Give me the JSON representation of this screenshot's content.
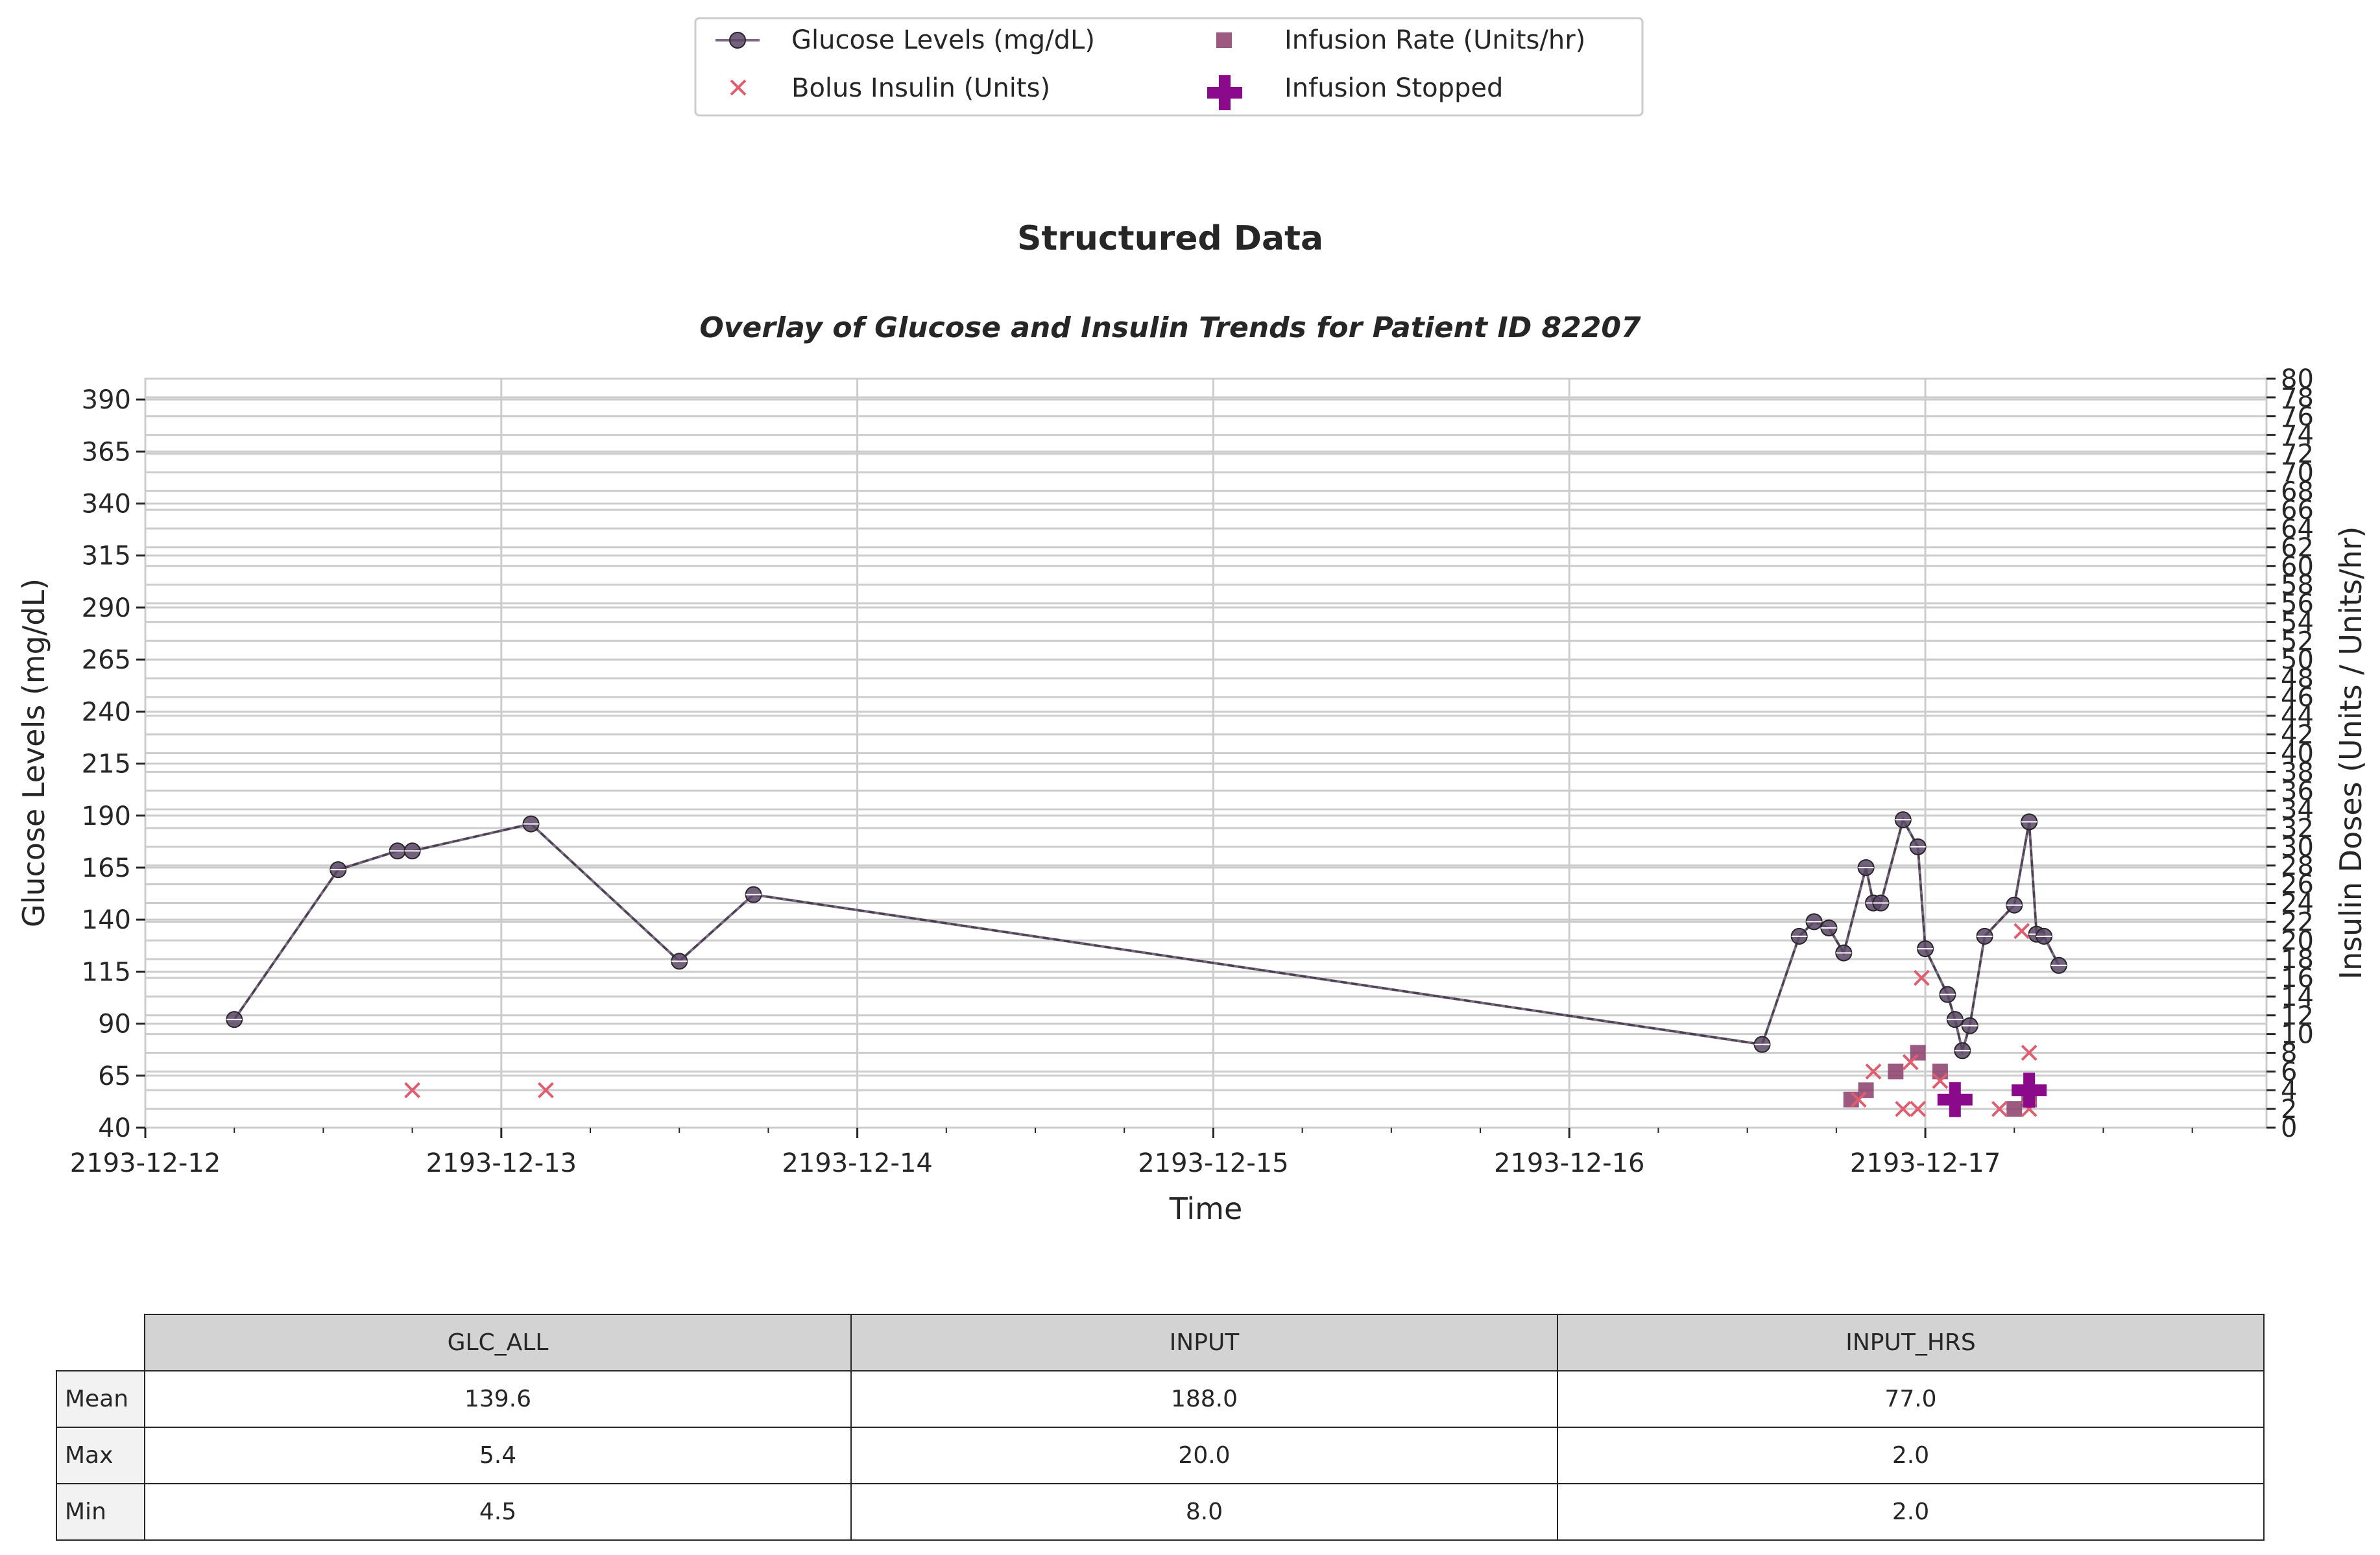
{
  "figure": {
    "suptitle": "Structured Data",
    "subtitle": "Overlay of Glucose and Insulin Trends for Patient ID 82207"
  },
  "legend": {
    "placement": "top-center",
    "items": [
      {
        "label": "Glucose Levels (mg/dL)",
        "marker": "line-circle",
        "color": "#5b4566"
      },
      {
        "label": "Infusion Rate (Units/hr)",
        "marker": "square",
        "color": "#8b3d6b"
      },
      {
        "label": "Bolus Insulin (Units)",
        "marker": "x",
        "color": "#e05c6e"
      },
      {
        "label": "Infusion Stopped",
        "marker": "plus",
        "color": "#8b0a8b"
      }
    ]
  },
  "chart_data": {
    "type": "line",
    "xlabel": "Time",
    "ylabel": "Glucose Levels (mg/dL)",
    "y2label": "Insulin Doses (Units / Units/hr)",
    "x_ticks": [
      "2193-12-12",
      "2193-12-13",
      "2193-12-14",
      "2193-12-15",
      "2193-12-16",
      "2193-12-17"
    ],
    "xlim": [
      "2193-12-12 00:00",
      "2193-12-17 23:00"
    ],
    "ylim": [
      40,
      400
    ],
    "y_ticks": [
      40,
      65,
      90,
      115,
      140,
      165,
      190,
      215,
      240,
      265,
      290,
      315,
      340,
      365,
      390
    ],
    "y2lim": [
      0,
      80
    ],
    "grid": true,
    "colors": {
      "glucose": "#5b4566",
      "infusion": "#8b3d6b",
      "bolus": "#e05c6e",
      "stopped": "#8b0a8b"
    },
    "series": [
      {
        "name": "Glucose Levels (mg/dL)",
        "axis": "left",
        "points": [
          [
            "2193-12-12 06:00",
            92
          ],
          [
            "2193-12-12 13:00",
            164
          ],
          [
            "2193-12-12 17:00",
            173
          ],
          [
            "2193-12-12 18:00",
            173
          ],
          [
            "2193-12-13 02:00",
            186
          ],
          [
            "2193-12-13 12:00",
            120
          ],
          [
            "2193-12-13 17:00",
            152
          ],
          [
            "2193-12-16 13:00",
            80
          ],
          [
            "2193-12-16 15:30",
            132
          ],
          [
            "2193-12-16 16:30",
            139
          ],
          [
            "2193-12-16 17:30",
            136
          ],
          [
            "2193-12-16 18:30",
            124
          ],
          [
            "2193-12-16 20:00",
            165
          ],
          [
            "2193-12-16 20:30",
            148
          ],
          [
            "2193-12-16 21:00",
            148
          ],
          [
            "2193-12-16 22:30",
            188
          ],
          [
            "2193-12-16 23:30",
            175
          ],
          [
            "2193-12-17 00:00",
            126
          ],
          [
            "2193-12-17 01:30",
            104
          ],
          [
            "2193-12-17 02:00",
            92
          ],
          [
            "2193-12-17 02:30",
            77
          ],
          [
            "2193-12-17 03:00",
            89
          ],
          [
            "2193-12-17 04:00",
            132
          ],
          [
            "2193-12-17 06:00",
            147
          ],
          [
            "2193-12-17 07:00",
            187
          ],
          [
            "2193-12-17 07:30",
            133
          ],
          [
            "2193-12-17 08:00",
            132
          ],
          [
            "2193-12-17 09:00",
            118
          ]
        ]
      },
      {
        "name": "Infusion Rate (Units/hr)",
        "axis": "right",
        "points": [
          [
            "2193-12-16 19:00",
            3
          ],
          [
            "2193-12-16 20:00",
            4
          ],
          [
            "2193-12-16 22:00",
            6
          ],
          [
            "2193-12-16 23:30",
            8
          ],
          [
            "2193-12-17 01:00",
            6
          ],
          [
            "2193-12-17 06:00",
            2
          ],
          [
            "2193-12-17 07:00",
            3
          ]
        ]
      },
      {
        "name": "Bolus Insulin (Units)",
        "axis": "right",
        "points": [
          [
            "2193-12-12 18:00",
            4
          ],
          [
            "2193-12-13 03:00",
            4
          ],
          [
            "2193-12-16 19:30",
            3
          ],
          [
            "2193-12-16 20:30",
            6
          ],
          [
            "2193-12-16 22:30",
            2
          ],
          [
            "2193-12-16 23:00",
            7
          ],
          [
            "2193-12-16 23:30",
            2
          ],
          [
            "2193-12-16 23:45",
            16
          ],
          [
            "2193-12-17 01:00",
            5
          ],
          [
            "2193-12-17 05:00",
            2
          ],
          [
            "2193-12-17 06:30",
            21
          ],
          [
            "2193-12-17 07:00",
            2
          ],
          [
            "2193-12-17 07:00",
            8
          ]
        ]
      },
      {
        "name": "Infusion Stopped",
        "axis": "right",
        "points": [
          [
            "2193-12-17 02:00",
            3
          ],
          [
            "2193-12-17 07:00",
            4
          ]
        ]
      }
    ]
  },
  "table": {
    "columns": [
      "GLC_ALL",
      "INPUT",
      "INPUT_HRS"
    ],
    "rows": [
      {
        "label": "Mean",
        "values": [
          "139.6",
          "188.0",
          "77.0"
        ]
      },
      {
        "label": "Max",
        "values": [
          "5.4",
          "20.0",
          "2.0"
        ]
      },
      {
        "label": "Min",
        "values": [
          "4.5",
          "8.0",
          "2.0"
        ]
      }
    ]
  }
}
